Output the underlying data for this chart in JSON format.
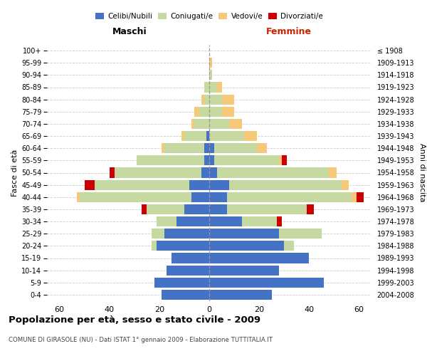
{
  "age_groups_bottom_to_top": [
    "0-4",
    "5-9",
    "10-14",
    "15-19",
    "20-24",
    "25-29",
    "30-34",
    "35-39",
    "40-44",
    "45-49",
    "50-54",
    "55-59",
    "60-64",
    "65-69",
    "70-74",
    "75-79",
    "80-84",
    "85-89",
    "90-94",
    "95-99",
    "100+"
  ],
  "birth_years_bottom_to_top": [
    "2004-2008",
    "1999-2003",
    "1994-1998",
    "1989-1993",
    "1984-1988",
    "1979-1983",
    "1974-1978",
    "1969-1973",
    "1964-1968",
    "1959-1963",
    "1954-1958",
    "1949-1953",
    "1944-1948",
    "1939-1943",
    "1934-1938",
    "1929-1933",
    "1924-1928",
    "1919-1923",
    "1914-1918",
    "1909-1913",
    "≤ 1908"
  ],
  "colors": {
    "celibi": "#4472C4",
    "coniugati": "#c5d9a0",
    "vedovi": "#f5c87a",
    "divorziati": "#cc0000"
  },
  "maschi": {
    "celibi": [
      19,
      22,
      17,
      15,
      21,
      18,
      13,
      10,
      7,
      8,
      3,
      2,
      2,
      1,
      0,
      0,
      0,
      0,
      0,
      0,
      0
    ],
    "coniugati": [
      0,
      0,
      0,
      0,
      2,
      5,
      8,
      15,
      45,
      38,
      35,
      27,
      16,
      9,
      6,
      4,
      2,
      2,
      0,
      0,
      0
    ],
    "vedovi": [
      0,
      0,
      0,
      0,
      0,
      0,
      0,
      0,
      1,
      0,
      0,
      0,
      1,
      1,
      1,
      2,
      1,
      0,
      0,
      0,
      0
    ],
    "divorziati": [
      0,
      0,
      0,
      0,
      0,
      0,
      0,
      2,
      0,
      4,
      2,
      0,
      0,
      0,
      0,
      0,
      0,
      0,
      0,
      0,
      0
    ]
  },
  "femmine": {
    "celibi": [
      25,
      46,
      28,
      40,
      30,
      28,
      13,
      7,
      7,
      8,
      3,
      2,
      2,
      0,
      0,
      0,
      0,
      0,
      0,
      0,
      0
    ],
    "coniugati": [
      0,
      0,
      0,
      0,
      4,
      17,
      14,
      32,
      50,
      45,
      45,
      26,
      17,
      14,
      8,
      5,
      5,
      3,
      1,
      0,
      0
    ],
    "vedovi": [
      0,
      0,
      0,
      0,
      0,
      0,
      0,
      0,
      2,
      3,
      3,
      1,
      4,
      5,
      5,
      5,
      5,
      2,
      0,
      1,
      0
    ],
    "divorziati": [
      0,
      0,
      0,
      0,
      0,
      0,
      2,
      3,
      3,
      0,
      0,
      2,
      0,
      0,
      0,
      0,
      0,
      0,
      0,
      0,
      0
    ]
  },
  "xlim": 65,
  "title": "Popolazione per età, sesso e stato civile - 2009",
  "subtitle": "COMUNE DI GIRASOLE (NU) - Dati ISTAT 1° gennaio 2009 - Elaborazione TUTTITALIA.IT",
  "ylabel_left": "Fasce di età",
  "ylabel_right": "Anni di nascita",
  "label_maschi": "Maschi",
  "label_femmine": "Femmine",
  "legend_labels": [
    "Celibi/Nubili",
    "Coniugati/e",
    "Vedovi/e",
    "Divorziati/e"
  ],
  "bg_color": "#ffffff",
  "grid_color": "#cccccc",
  "spine_color": "#aaaaaa"
}
